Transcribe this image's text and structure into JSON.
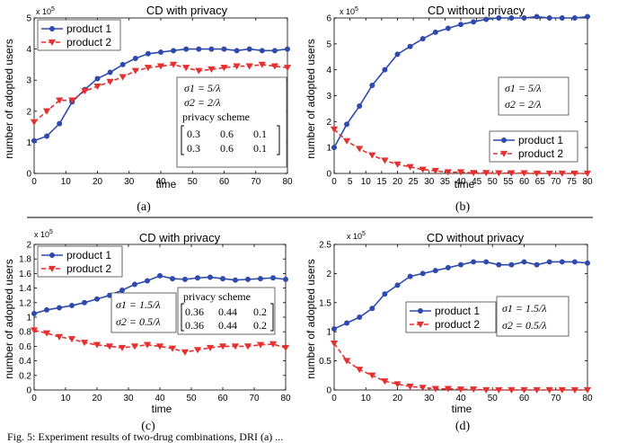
{
  "chart_data": [
    {
      "type": "line",
      "panel_label": "(a)",
      "title": "CD with privacy",
      "xlabel": "time",
      "ylabel": "number of adopted users",
      "y_exponent": "x 10^5",
      "xlim": [
        0,
        80
      ],
      "ylim": [
        0,
        5
      ],
      "xticks": [
        0,
        10,
        20,
        30,
        40,
        50,
        60,
        70,
        80
      ],
      "yticks": [
        0,
        1,
        2,
        3,
        4,
        5
      ],
      "x": [
        0,
        4,
        8,
        12,
        16,
        20,
        24,
        28,
        32,
        36,
        40,
        44,
        48,
        52,
        56,
        60,
        64,
        68,
        72,
        76,
        80
      ],
      "series": [
        {
          "name": "product 1",
          "color": "#2e4bab",
          "marker": "circle",
          "dash": "solid",
          "values": [
            1.05,
            1.2,
            1.6,
            2.3,
            2.7,
            3.05,
            3.25,
            3.5,
            3.7,
            3.85,
            3.9,
            3.95,
            4.0,
            4.0,
            4.0,
            4.0,
            3.95,
            4.0,
            3.95,
            3.95,
            4.0
          ]
        },
        {
          "name": "product 2",
          "color": "#e53030",
          "marker": "triangle-down",
          "dash": "dashed",
          "values": [
            1.65,
            2.0,
            2.35,
            2.35,
            2.65,
            2.8,
            2.95,
            3.1,
            3.3,
            3.4,
            3.45,
            3.5,
            3.4,
            3.3,
            3.35,
            3.4,
            3.45,
            3.45,
            3.5,
            3.45,
            3.4
          ]
        }
      ],
      "legend": "top-left",
      "annotation": {
        "lines": [
          "σ1 = 5/λ",
          "σ2 = 2/λ"
        ],
        "matrix_title": "privacy scheme",
        "matrix": [
          [
            "0.3",
            "0.6",
            "0.1"
          ],
          [
            "0.3",
            "0.6",
            "0.1"
          ]
        ]
      }
    },
    {
      "type": "line",
      "panel_label": "(b)",
      "title": "CD without privacy",
      "xlabel": "time",
      "ylabel": "number of adopted users",
      "y_exponent": "x 10^5",
      "xlim": [
        0,
        80
      ],
      "ylim": [
        0,
        6
      ],
      "xticks": [
        0,
        5,
        10,
        15,
        20,
        25,
        30,
        35,
        40,
        45,
        50,
        55,
        60,
        65,
        70,
        75,
        80
      ],
      "yticks": [
        0,
        1,
        2,
        3,
        4,
        5,
        6
      ],
      "x": [
        0,
        4,
        8,
        12,
        16,
        20,
        24,
        28,
        32,
        36,
        40,
        44,
        48,
        52,
        56,
        60,
        64,
        68,
        72,
        76,
        80
      ],
      "series": [
        {
          "name": "product 1",
          "color": "#2e4bab",
          "marker": "circle",
          "dash": "solid",
          "values": [
            1.0,
            1.9,
            2.6,
            3.4,
            4.0,
            4.6,
            4.9,
            5.2,
            5.45,
            5.6,
            5.75,
            5.85,
            5.95,
            6.0,
            6.0,
            6.0,
            6.05,
            6.0,
            6.0,
            6.0,
            6.05
          ]
        },
        {
          "name": "product 2",
          "color": "#e53030",
          "marker": "triangle-down",
          "dash": "dashed",
          "values": [
            1.7,
            1.25,
            0.95,
            0.7,
            0.5,
            0.35,
            0.25,
            0.15,
            0.1,
            0.05,
            0.05,
            0.02,
            0.02,
            0.01,
            0.01,
            0.01,
            0.0,
            0.0,
            0.0,
            0.0,
            0.0
          ]
        }
      ],
      "legend": "center-right",
      "annotation": {
        "lines": [
          "σ1 = 5/λ",
          "σ2 = 2/λ"
        ]
      }
    },
    {
      "type": "line",
      "panel_label": "(c)",
      "title": "CD with privacy",
      "xlabel": "time",
      "ylabel": "number of adopted users",
      "y_exponent": "x 10^5",
      "xlim": [
        0,
        80
      ],
      "ylim": [
        0,
        2
      ],
      "xticks": [
        0,
        10,
        20,
        30,
        40,
        50,
        60,
        70,
        80
      ],
      "yticks": [
        0,
        0.2,
        0.4,
        0.6,
        0.8,
        1,
        1.2,
        1.4,
        1.6,
        1.8,
        2
      ],
      "x": [
        0,
        4,
        8,
        12,
        16,
        20,
        24,
        28,
        32,
        36,
        40,
        44,
        48,
        52,
        56,
        60,
        64,
        68,
        72,
        76,
        80
      ],
      "series": [
        {
          "name": "product 1",
          "color": "#2e4bab",
          "marker": "circle",
          "dash": "solid",
          "values": [
            1.05,
            1.1,
            1.13,
            1.16,
            1.2,
            1.25,
            1.3,
            1.37,
            1.45,
            1.5,
            1.57,
            1.53,
            1.52,
            1.54,
            1.55,
            1.53,
            1.51,
            1.52,
            1.53,
            1.54,
            1.52
          ]
        },
        {
          "name": "product 2",
          "color": "#e53030",
          "marker": "triangle-down",
          "dash": "dashed",
          "values": [
            0.82,
            0.78,
            0.73,
            0.7,
            0.65,
            0.62,
            0.6,
            0.58,
            0.6,
            0.62,
            0.6,
            0.57,
            0.52,
            0.55,
            0.58,
            0.6,
            0.6,
            0.6,
            0.62,
            0.63,
            0.58
          ]
        }
      ],
      "legend": "top-left",
      "annotation": {
        "lines": [
          "σ1 = 1.5/λ",
          "σ2 = 0.5/λ"
        ],
        "matrix_title": "privacy scheme",
        "matrix": [
          [
            "0.36",
            "0.44",
            "0.2"
          ],
          [
            "0.36",
            "0.44",
            "0.2"
          ]
        ]
      }
    },
    {
      "type": "line",
      "panel_label": "(d)",
      "title": "CD without privacy",
      "xlabel": "time",
      "ylabel": "number of adopted users",
      "y_exponent": "x 10^5",
      "xlim": [
        0,
        80
      ],
      "ylim": [
        0,
        2.5
      ],
      "xticks": [
        0,
        10,
        20,
        30,
        40,
        50,
        60,
        70,
        80
      ],
      "yticks": [
        0,
        0.5,
        1,
        1.5,
        2,
        2.5
      ],
      "x": [
        0,
        4,
        8,
        12,
        16,
        20,
        24,
        28,
        32,
        36,
        40,
        44,
        48,
        52,
        56,
        60,
        64,
        68,
        72,
        76,
        80
      ],
      "series": [
        {
          "name": "product 1",
          "color": "#2e4bab",
          "marker": "circle",
          "dash": "solid",
          "values": [
            1.05,
            1.15,
            1.25,
            1.4,
            1.65,
            1.8,
            1.95,
            2.0,
            2.05,
            2.1,
            2.15,
            2.2,
            2.2,
            2.15,
            2.15,
            2.2,
            2.15,
            2.2,
            2.2,
            2.2,
            2.18
          ]
        },
        {
          "name": "product 2",
          "color": "#e53030",
          "marker": "triangle-down",
          "dash": "dashed",
          "values": [
            0.8,
            0.5,
            0.35,
            0.25,
            0.15,
            0.1,
            0.06,
            0.04,
            0.02,
            0.02,
            0.01,
            0.01,
            0.0,
            0.0,
            0.0,
            0.0,
            0.0,
            0.0,
            0.0,
            0.0,
            0.0
          ]
        }
      ],
      "legend": "center-right",
      "annotation": {
        "lines": [
          "σ1 = 1.5/λ",
          "σ2 = 0.5/λ"
        ]
      }
    }
  ],
  "caption": "Fig. 5: Experiment results of two-drug combinations, DRI (a) ..."
}
